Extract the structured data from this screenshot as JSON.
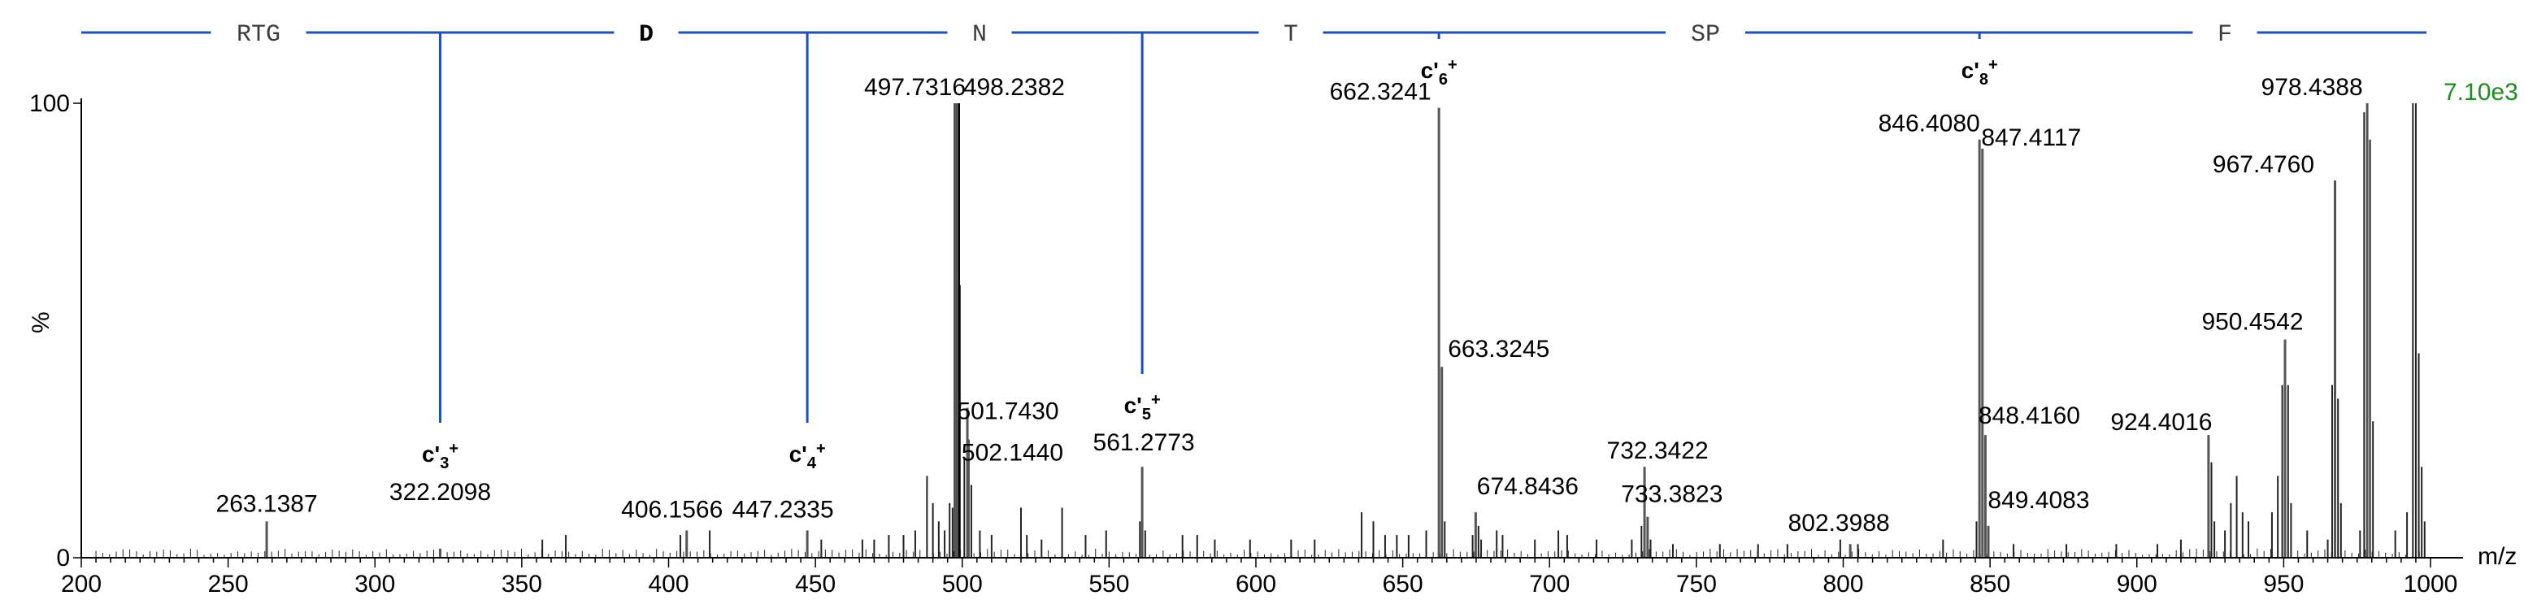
{
  "colors": {
    "seq_line": "#1f4fbf",
    "intensity": "#1e8c1e",
    "peak": "#000000",
    "grid": "none"
  },
  "chart_data": {
    "type": "bar",
    "title": "",
    "xlabel": "m/z",
    "ylabel": "%",
    "xlim": [
      200,
      1000
    ],
    "ylim": [
      0,
      100
    ],
    "x_ticks": [
      200,
      250,
      300,
      350,
      400,
      450,
      500,
      550,
      600,
      650,
      700,
      750,
      800,
      850,
      900,
      950,
      1000
    ],
    "y_ticks": [
      0,
      100
    ],
    "y_mid_label": "%",
    "intensity_label": "7.10e3",
    "x_axis_unit": "m/z",
    "sequence": [
      {
        "label": "RTG",
        "bold": false
      },
      {
        "label": "D",
        "bold": true
      },
      {
        "label": "N",
        "bold": false
      },
      {
        "label": "T",
        "bold": false
      },
      {
        "label": "SP",
        "bold": false
      },
      {
        "label": "F",
        "bold": false
      }
    ],
    "fragment_ions": [
      {
        "name": "c'",
        "sub": "3",
        "sup": "+",
        "mz": 322.21
      },
      {
        "name": "c'",
        "sub": "4",
        "sup": "+",
        "mz": 447.23
      },
      {
        "name": "c'",
        "sub": "5",
        "sup": "+",
        "mz": 561.28
      },
      {
        "name": "c'",
        "sub": "6",
        "sup": "+",
        "mz": 662.32
      },
      {
        "name": "c'",
        "sub": "8",
        "sup": "+",
        "mz": 846.41
      }
    ],
    "labeled_peaks": [
      {
        "mz": 263.1387,
        "label": "263.1387",
        "y": 8
      },
      {
        "mz": 322.2098,
        "label": "322.2098",
        "y": 2
      },
      {
        "mz": 406.1566,
        "label": "406.1566",
        "y": 6
      },
      {
        "mz": 447.2335,
        "label": "447.2335",
        "y": 6
      },
      {
        "mz": 497.7316,
        "label": "497.7316",
        "y": 100
      },
      {
        "mz": 498.2382,
        "label": "498.2382",
        "y": 100
      },
      {
        "mz": 501.743,
        "label": "501.7430",
        "y": 33
      },
      {
        "mz": 502.144,
        "label": "502.1440",
        "y": 26
      },
      {
        "mz": 561.2773,
        "label": "561.2773",
        "y": 20
      },
      {
        "mz": 662.3241,
        "label": "662.3241",
        "y": 99
      },
      {
        "mz": 663.3245,
        "label": "663.3245",
        "y": 42
      },
      {
        "mz": 674.8436,
        "label": "674.8436",
        "y": 10
      },
      {
        "mz": 732.3422,
        "label": "732.3422",
        "y": 20
      },
      {
        "mz": 733.3823,
        "label": "733.3823",
        "y": 9
      },
      {
        "mz": 802.3988,
        "label": "802.3988",
        "y": 3
      },
      {
        "mz": 846.408,
        "label": "846.4080",
        "y": 92
      },
      {
        "mz": 847.4117,
        "label": "847.4117",
        "y": 90
      },
      {
        "mz": 848.416,
        "label": "848.4160",
        "y": 27
      },
      {
        "mz": 849.4083,
        "label": "849.4083",
        "y": 7
      },
      {
        "mz": 924.4016,
        "label": "924.4016",
        "y": 27
      },
      {
        "mz": 950.4542,
        "label": "950.4542",
        "y": 48
      },
      {
        "mz": 967.476,
        "label": "967.4760",
        "y": 83
      },
      {
        "mz": 978.4388,
        "label": "978.4388",
        "y": 100
      }
    ],
    "unlabeled_peaks": [
      [
        357,
        4
      ],
      [
        365,
        5
      ],
      [
        404,
        5
      ],
      [
        414,
        6
      ],
      [
        452,
        4
      ],
      [
        466,
        4
      ],
      [
        470,
        4
      ],
      [
        475,
        5
      ],
      [
        480,
        5
      ],
      [
        484,
        6
      ],
      [
        488,
        18
      ],
      [
        490,
        12
      ],
      [
        492,
        8
      ],
      [
        494,
        6
      ],
      [
        495.7,
        12
      ],
      [
        496.7,
        11
      ],
      [
        499.2,
        60
      ],
      [
        500.7,
        22
      ],
      [
        503.1,
        16
      ],
      [
        506,
        6
      ],
      [
        510,
        5
      ],
      [
        520,
        11
      ],
      [
        522,
        5
      ],
      [
        527,
        4
      ],
      [
        534,
        11
      ],
      [
        542,
        5
      ],
      [
        549,
        6
      ],
      [
        560.5,
        8
      ],
      [
        562.3,
        6
      ],
      [
        575,
        5
      ],
      [
        580,
        5
      ],
      [
        586,
        4
      ],
      [
        598,
        4
      ],
      [
        612,
        4
      ],
      [
        620,
        4
      ],
      [
        636,
        10
      ],
      [
        640,
        8
      ],
      [
        644,
        5
      ],
      [
        648,
        5
      ],
      [
        652,
        5
      ],
      [
        658,
        6
      ],
      [
        664.3,
        8
      ],
      [
        673.8,
        5
      ],
      [
        675.8,
        7
      ],
      [
        676.7,
        4
      ],
      [
        682,
        6
      ],
      [
        684,
        5
      ],
      [
        695,
        4
      ],
      [
        703,
        6
      ],
      [
        706,
        5
      ],
      [
        716,
        4
      ],
      [
        728,
        4
      ],
      [
        731.3,
        7
      ],
      [
        734.4,
        4
      ],
      [
        742,
        3
      ],
      [
        758,
        3
      ],
      [
        771,
        3
      ],
      [
        781,
        3
      ],
      [
        799,
        4
      ],
      [
        805,
        3
      ],
      [
        834,
        4
      ],
      [
        845.4,
        8
      ],
      [
        858,
        3
      ],
      [
        876,
        3
      ],
      [
        893,
        3
      ],
      [
        907,
        3
      ],
      [
        915,
        4
      ],
      [
        925.4,
        21
      ],
      [
        926.4,
        8
      ],
      [
        930,
        6
      ],
      [
        932,
        12
      ],
      [
        934,
        18
      ],
      [
        936,
        10
      ],
      [
        938,
        8
      ],
      [
        946,
        10
      ],
      [
        948,
        18
      ],
      [
        949.5,
        38
      ],
      [
        951.5,
        38
      ],
      [
        952.5,
        12
      ],
      [
        958,
        6
      ],
      [
        965,
        4
      ],
      [
        966.5,
        38
      ],
      [
        968.5,
        35
      ],
      [
        969.5,
        12
      ],
      [
        976,
        6
      ],
      [
        977.4,
        98
      ],
      [
        979.4,
        92
      ],
      [
        980.4,
        30
      ],
      [
        988,
        6
      ],
      [
        992,
        10
      ],
      [
        994,
        100
      ],
      [
        995,
        100
      ],
      [
        996,
        45
      ],
      [
        997,
        20
      ],
      [
        998,
        8
      ]
    ]
  }
}
